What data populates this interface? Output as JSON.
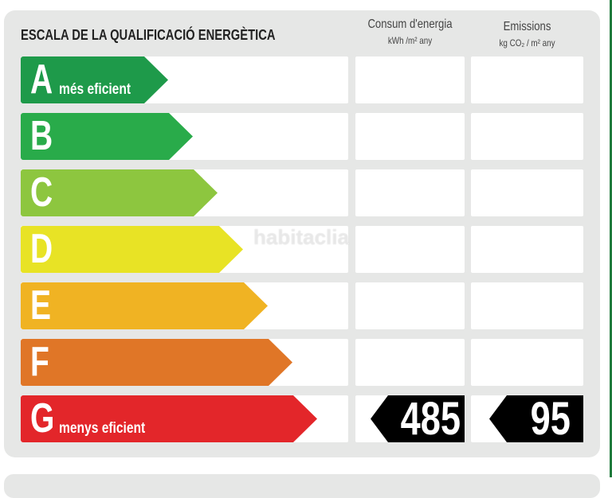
{
  "title": "ESCALA DE LA QUALIFICACIÓ ENERGÈTICA",
  "columns": [
    {
      "label": "Consum d'energia",
      "unit": "kWh /m² any"
    },
    {
      "label": "Emissions",
      "unit": "kg CO₂ / m² any"
    }
  ],
  "classes": [
    {
      "letter": "A",
      "sub": "més eficient",
      "color": "#1e9a4a"
    },
    {
      "letter": "B",
      "sub": "",
      "color": "#29ab4a"
    },
    {
      "letter": "C",
      "sub": "",
      "color": "#8dc63f"
    },
    {
      "letter": "D",
      "sub": "",
      "color": "#e8e325"
    },
    {
      "letter": "E",
      "sub": "",
      "color": "#f0b323"
    },
    {
      "letter": "F",
      "sub": "",
      "color": "#e07627"
    },
    {
      "letter": "G",
      "sub": "menys eficient",
      "color": "#e3262a"
    }
  ],
  "rating": {
    "class": "G",
    "consumption": "485",
    "emissions": "95"
  },
  "watermark": "habitaclia"
}
